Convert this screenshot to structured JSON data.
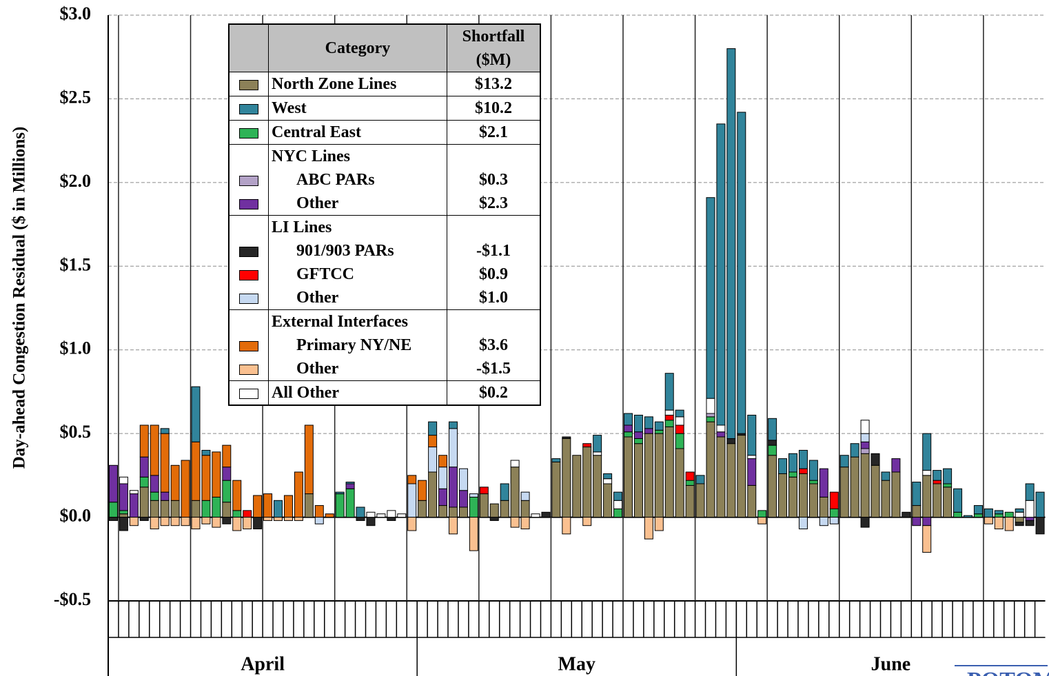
{
  "chart_data": {
    "type": "stacked-bar",
    "y_label": "Day-ahead Congestion Residual ($ in Millions)",
    "ylim": [
      -0.5,
      3.0
    ],
    "yticks": [
      {
        "value": -0.5,
        "label": "-$0.5"
      },
      {
        "value": 0,
        "label": "$0.0"
      },
      {
        "value": 0.5,
        "label": "$0.5"
      },
      {
        "value": 1.0,
        "label": "$1.0"
      },
      {
        "value": 1.5,
        "label": "$1.5"
      },
      {
        "value": 2.0,
        "label": "$2.0"
      },
      {
        "value": 2.5,
        "label": "$2.5"
      },
      {
        "value": 3.0,
        "label": "$3.0"
      }
    ],
    "grid": true,
    "categories": [
      null,
      null,
      null,
      null,
      null,
      null,
      null,
      null,
      null,
      null,
      null,
      null,
      null,
      null,
      null,
      null,
      null,
      null,
      null,
      null,
      null,
      null,
      null,
      null,
      null,
      null,
      null,
      null,
      null,
      null,
      null,
      null,
      null,
      null,
      null,
      null,
      null,
      null,
      null,
      null,
      null,
      null,
      null,
      null,
      null,
      null,
      null,
      null,
      null,
      null,
      null,
      null,
      null,
      null,
      null,
      null,
      null,
      null,
      null,
      null,
      null,
      null,
      null,
      null,
      null,
      null,
      null,
      null,
      null,
      null,
      null,
      null,
      null,
      null,
      null,
      null,
      null,
      null,
      null,
      null,
      null,
      null,
      null,
      null,
      null,
      null,
      null,
      null,
      null,
      null,
      null
    ],
    "x_groups": [
      "April",
      "May",
      "June"
    ],
    "legend_headers": [
      "Category",
      "Shortfall ($M)"
    ],
    "watermark": "POTOM",
    "series": [
      {
        "name": "North Zone Lines",
        "color": "#8c8158",
        "total": {
          "value": 13.2,
          "label": "$13.2"
        },
        "values": [
          0,
          0.02,
          0,
          0.18,
          0.1,
          0.1,
          0.1,
          0,
          0.1,
          0,
          0,
          0.09,
          0,
          0,
          0,
          0,
          0,
          0,
          0,
          0.14,
          0,
          0,
          0,
          0,
          0,
          0,
          0,
          0,
          0,
          0,
          0.1,
          0.27,
          0.07,
          0.06,
          0.06,
          0,
          0.14,
          0.08,
          0.1,
          0.3,
          0.1,
          0,
          0,
          0.33,
          0.47,
          0.37,
          0.42,
          0.37,
          0.2,
          0,
          0.48,
          0.44,
          0.5,
          0.5,
          0.54,
          0.41,
          0.19,
          0.2,
          0.57,
          0.48,
          0.44,
          0.49,
          0.19,
          0,
          0.37,
          0.26,
          0.24,
          0.26,
          0.2,
          0.12,
          0,
          0.3,
          0.36,
          0.38,
          0.31,
          0.22,
          0.27,
          0,
          0.07,
          0.25,
          0.2,
          0.18,
          0,
          0,
          0,
          0,
          0,
          0,
          -0.03,
          0,
          0
        ]
      },
      {
        "name": "Central East",
        "color": "#2eb356",
        "total": {
          "value": 2.1,
          "label": "$2.1"
        },
        "values": [
          0.09,
          0.02,
          0,
          0.06,
          0.05,
          0,
          0,
          0,
          0,
          0.1,
          0.12,
          0.13,
          0.04,
          0,
          0,
          0,
          0,
          0,
          0,
          0,
          0,
          0,
          0.14,
          0.17,
          0,
          0,
          0,
          0,
          0,
          0,
          0,
          0,
          0,
          0,
          0,
          0.12,
          0,
          0,
          0,
          0,
          0,
          0,
          0,
          0,
          0,
          0,
          0,
          0,
          0,
          0.05,
          0.03,
          0.03,
          0,
          0.02,
          0.04,
          0.09,
          0.03,
          0,
          0.03,
          0,
          0,
          0,
          0,
          0.04,
          0.06,
          0,
          0.03,
          0,
          0.02,
          0,
          0.05,
          0,
          0,
          0,
          0,
          0,
          0,
          0,
          0,
          0,
          0,
          0.02,
          0.03,
          0,
          0.02,
          0,
          0.02,
          0.03,
          0,
          0,
          0
        ]
      },
      {
        "name": "ABC PARs",
        "group": "NYC Lines",
        "color": "#b3a2c7",
        "total": {
          "value": 0.3,
          "label": "$0.3"
        },
        "values": [
          0,
          0,
          0,
          0,
          0,
          0,
          0,
          0,
          0,
          0,
          0,
          0,
          0,
          0,
          0,
          0,
          0,
          0,
          0,
          0,
          0,
          0,
          0,
          0,
          0,
          0,
          0,
          0,
          0,
          0,
          0,
          0,
          0,
          0,
          0,
          0,
          0,
          0,
          0,
          0,
          0,
          0,
          0,
          0,
          0,
          0,
          0,
          0,
          0,
          0,
          0,
          0,
          0,
          0,
          0,
          0,
          0,
          0,
          0.02,
          0,
          0,
          0,
          0,
          0,
          0,
          0,
          0,
          0,
          0,
          0,
          0,
          0,
          0,
          0.03,
          0,
          0,
          0,
          0,
          0,
          0,
          0,
          0,
          0,
          0,
          0,
          0,
          0,
          0,
          0,
          0,
          0
        ]
      },
      {
        "name": "Other",
        "group": "NYC Lines",
        "color": "#7030a0",
        "total": {
          "value": 2.3,
          "label": "$2.3"
        },
        "values": [
          0.22,
          0.16,
          0.14,
          0.12,
          0.1,
          0.05,
          0,
          0,
          0,
          0,
          0,
          0.08,
          0,
          0,
          0,
          0,
          0,
          0,
          0,
          0,
          0,
          0,
          0,
          0.03,
          0,
          0,
          0,
          0,
          0,
          0,
          0,
          0,
          0.1,
          0.24,
          0.1,
          0,
          0,
          0,
          0,
          0,
          0,
          0,
          0,
          0,
          0,
          0,
          0,
          0,
          0,
          0,
          0.04,
          0.04,
          0.03,
          0,
          0,
          0,
          0,
          0,
          0,
          0.03,
          0,
          0,
          0.16,
          0,
          0,
          0,
          0,
          0,
          0,
          0.17,
          0,
          0,
          0,
          0.04,
          0,
          0,
          0.08,
          0,
          -0.05,
          -0.05,
          0,
          0,
          0,
          0,
          0,
          0,
          0,
          0,
          0,
          -0.02,
          0
        ]
      },
      {
        "name": "901/903 PARs",
        "group": "LI Lines",
        "color": "#262626",
        "total": {
          "value": -1.1,
          "label": "-$1.1"
        },
        "values": [
          -0.02,
          -0.08,
          0,
          -0.02,
          0,
          0,
          0,
          0,
          0,
          0,
          0,
          -0.04,
          0,
          0,
          -0.07,
          0,
          0,
          0,
          0,
          0,
          0,
          0,
          0,
          0,
          -0.02,
          -0.05,
          0,
          -0.02,
          0,
          0,
          0,
          0,
          0,
          0,
          0,
          0,
          0,
          -0.02,
          0,
          0,
          0,
          0,
          0.03,
          0,
          0.01,
          0,
          0,
          0,
          0,
          0,
          0,
          0,
          0,
          0,
          0,
          0,
          0,
          0,
          0,
          0,
          0.03,
          0.01,
          0,
          0,
          0.03,
          0,
          0,
          0,
          0,
          0,
          0,
          0,
          0,
          -0.06,
          0.07,
          0,
          0,
          0.03,
          0,
          0,
          0,
          0,
          0,
          0,
          0,
          0,
          0,
          0,
          -0.02,
          -0.03,
          -0.1
        ]
      },
      {
        "name": "GFTCC",
        "group": "LI Lines",
        "color": "#ff0000",
        "total": {
          "value": 0.9,
          "label": "$0.9"
        },
        "values": [
          0,
          0,
          0,
          0,
          0,
          0,
          0,
          0,
          0,
          0,
          0,
          0,
          0,
          0.04,
          0,
          0,
          0,
          0,
          0,
          0,
          0,
          0,
          0,
          0,
          0,
          0,
          0,
          0,
          0,
          0,
          0,
          0,
          0,
          0,
          0,
          0,
          0.04,
          0,
          0,
          0,
          0,
          0,
          0,
          0,
          0,
          0,
          0.02,
          0,
          0,
          0,
          0,
          0,
          0,
          0,
          0.03,
          0.05,
          0.05,
          0,
          0,
          0,
          0,
          0,
          0,
          0,
          0,
          0,
          0,
          0.03,
          0,
          0,
          0.1,
          0,
          0,
          0,
          0,
          0,
          0,
          0,
          0,
          0,
          0.02,
          0,
          0,
          0,
          0,
          0,
          0,
          0,
          0,
          0,
          0
        ]
      },
      {
        "name": "Other",
        "group": "LI Lines",
        "color": "#c6d9f1",
        "total": {
          "value": 1.0,
          "label": "$1.0"
        },
        "values": [
          0,
          0,
          0,
          0,
          0,
          0,
          0,
          0,
          0,
          0,
          0,
          0,
          0,
          0,
          0,
          0,
          0,
          0,
          0,
          0,
          -0.04,
          0,
          0,
          0,
          0,
          0,
          0,
          0,
          0,
          0.2,
          0,
          0.15,
          0.13,
          0.23,
          0.13,
          0.02,
          0,
          0,
          0,
          0,
          0.05,
          0,
          0,
          0,
          0,
          0,
          0,
          0,
          0,
          0,
          0,
          0,
          0,
          0,
          0,
          0,
          0,
          0,
          0,
          0,
          0,
          0,
          0,
          0,
          0,
          0,
          0,
          -0.07,
          0,
          -0.05,
          -0.04,
          0,
          0,
          0.05,
          0,
          0,
          0,
          0,
          0,
          0,
          0,
          0,
          0,
          0,
          0,
          0,
          0,
          0,
          0,
          0,
          0
        ]
      },
      {
        "name": "Primary NY/NE",
        "group": "External Interfaces",
        "color": "#e36c09",
        "total": {
          "value": 3.6,
          "label": "$3.6"
        },
        "values": [
          0,
          0,
          0,
          0.19,
          0.3,
          0.35,
          0.21,
          0.34,
          0.35,
          0.27,
          0.27,
          0.13,
          0.18,
          0,
          0.13,
          0.14,
          0,
          0.13,
          0.27,
          0.41,
          0.07,
          0.02,
          0,
          0,
          0,
          0,
          0,
          0,
          0,
          0.05,
          0.12,
          0.07,
          0.07,
          0,
          0,
          0,
          0,
          0,
          0,
          0,
          0,
          0,
          0,
          0,
          0,
          0,
          0,
          0,
          0,
          0,
          0,
          0,
          0,
          0,
          0,
          0,
          0,
          0,
          0,
          0,
          0,
          0,
          0,
          0,
          0,
          0,
          0,
          0,
          0,
          0,
          0,
          0,
          0,
          0,
          0,
          0,
          0,
          0,
          0,
          0,
          0,
          0,
          0,
          0,
          0,
          0,
          0,
          0,
          0,
          0,
          0
        ]
      },
      {
        "name": "Other",
        "group": "External Interfaces",
        "color": "#fac090",
        "total": {
          "value": -1.5,
          "label": "-$1.5"
        },
        "values": [
          0,
          0,
          -0.05,
          0,
          -0.07,
          -0.05,
          -0.05,
          -0.05,
          -0.07,
          -0.04,
          -0.06,
          0,
          -0.08,
          -0.07,
          0,
          -0.02,
          -0.02,
          -0.02,
          -0.02,
          0,
          0,
          0,
          0,
          0,
          0,
          0,
          0,
          0,
          0,
          -0.08,
          0,
          0,
          0,
          -0.1,
          0,
          -0.2,
          0,
          0,
          0,
          -0.06,
          -0.07,
          0,
          0,
          0,
          -0.1,
          0,
          -0.05,
          0,
          0,
          0,
          0,
          0,
          -0.13,
          -0.08,
          0,
          0,
          0,
          0,
          0,
          0,
          0,
          0,
          0,
          -0.04,
          0,
          0,
          0,
          0,
          0,
          0,
          0,
          0,
          0,
          0,
          0,
          0,
          0,
          0,
          0,
          -0.16,
          0,
          0,
          0,
          0,
          0,
          -0.04,
          -0.07,
          -0.08,
          0,
          0,
          0
        ]
      },
      {
        "name": "All Other",
        "color": "#ffffff",
        "total": {
          "value": 0.2,
          "label": "$0.2"
        },
        "values": [
          0,
          0.04,
          0.02,
          0,
          0,
          0,
          0,
          0,
          0,
          0,
          0,
          0,
          0,
          0,
          0,
          0,
          0,
          0,
          0,
          0,
          0,
          0,
          0,
          0,
          0,
          0.03,
          0.02,
          0.04,
          0.02,
          0,
          0,
          0,
          0,
          0,
          0,
          0,
          0,
          0,
          0,
          0.04,
          0,
          0.02,
          0,
          0,
          0,
          0,
          0,
          0.02,
          0.03,
          0.05,
          0,
          0,
          0,
          0,
          0.03,
          0.05,
          0,
          0,
          0.09,
          0.04,
          0,
          0,
          0.02,
          0,
          0,
          0,
          0,
          0,
          0,
          0,
          0,
          0,
          0,
          0.08,
          0,
          0,
          0,
          0,
          0,
          0.03,
          0,
          0,
          0,
          0,
          0,
          0,
          0,
          0,
          0.03,
          0.1,
          0
        ]
      },
      {
        "name": "West",
        "color": "#31849b",
        "total": {
          "value": 10.2,
          "label": "$10.2"
        },
        "values": [
          0,
          0,
          0,
          0,
          0,
          0.03,
          0,
          0,
          0.33,
          0.03,
          0,
          0,
          0,
          0,
          0,
          0,
          0.1,
          0,
          0,
          0,
          0,
          0,
          0.01,
          0.01,
          0.06,
          0,
          0,
          0,
          0,
          0,
          0,
          0.08,
          0,
          0.04,
          0,
          0,
          0,
          0,
          0.1,
          0,
          0,
          0,
          0,
          0.02,
          0,
          0,
          0,
          0.1,
          0.03,
          0.05,
          0.07,
          0.1,
          0.07,
          0.05,
          0.22,
          0.04,
          0,
          0.05,
          1.2,
          1.8,
          2.33,
          1.92,
          0.24,
          0,
          0.13,
          0.09,
          0.11,
          0.11,
          0.12,
          0,
          0,
          0.07,
          0.08,
          0,
          0,
          0.05,
          0,
          0,
          0.14,
          0.22,
          0.06,
          0.09,
          0.14,
          0.01,
          0.05,
          0.05,
          0.02,
          0,
          0.02,
          0.1,
          0.15
        ]
      }
    ]
  }
}
